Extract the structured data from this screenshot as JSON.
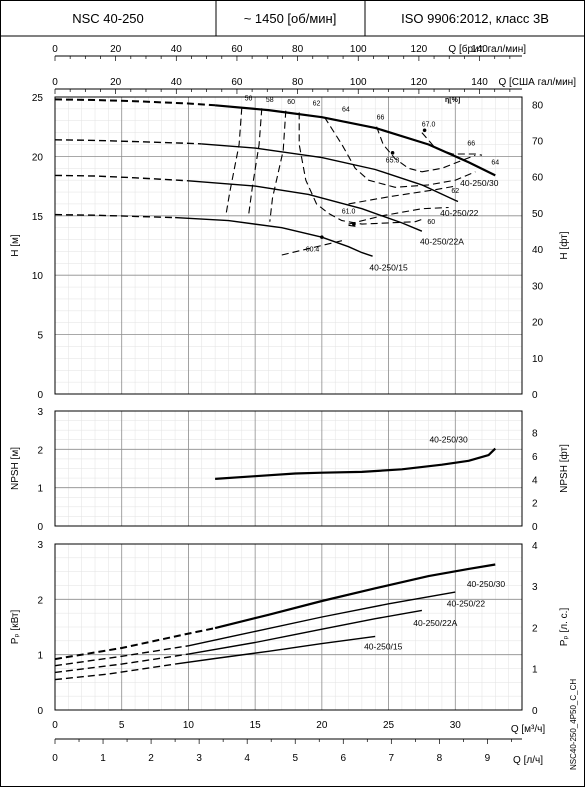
{
  "header": {
    "model": "NSC 40-250",
    "speed": "~ 1450 [об/мин]",
    "standard": "ISO 9906:2012, класс 3B"
  },
  "side_code": "NSC40-250_4P50_C_CH",
  "colors": {
    "curve": "#000000",
    "grid_major": "#8c8c8c",
    "grid_minor": "#e2e2e2"
  },
  "chart_data": [
    {
      "type": "line",
      "name": "head",
      "x_axis": {
        "label": "Q [м³/ч]",
        "range": [
          0,
          35
        ],
        "ticks": [
          "0",
          "5",
          "10",
          "15",
          "20",
          "25",
          "30"
        ]
      },
      "top_axis_1": {
        "label": "Q [брит. гал/мин]",
        "range": [
          0,
          154
        ],
        "ticks": [
          "0",
          "20",
          "40",
          "60",
          "80",
          "100",
          "120",
          "140"
        ]
      },
      "top_axis_2": {
        "label": "Q [США гал/мин]",
        "range": [
          0,
          154
        ],
        "ticks": [
          "0",
          "20",
          "40",
          "60",
          "80",
          "100",
          "120",
          "140"
        ]
      },
      "ylabel": "H [м]",
      "ylim": [
        0,
        25
      ],
      "yticks": [
        "0",
        "5",
        "10",
        "15",
        "20",
        "25"
      ],
      "ylabel2": "H [фт]",
      "ylim2": [
        0,
        82.02
      ],
      "yticks2": [
        "0",
        "10",
        "20",
        "30",
        "40",
        "50",
        "60",
        "70",
        "80"
      ],
      "series": [
        {
          "name": "40-250/30",
          "dashed": [
            [
              0,
              24.8
            ],
            [
              3,
              24.75
            ],
            [
              6,
              24.65
            ],
            [
              10,
              24.45
            ],
            [
              12,
              24.3
            ]
          ],
          "values": [
            [
              12,
              24.3
            ],
            [
              16,
              23.9
            ],
            [
              20,
              23.3
            ],
            [
              24,
              22.4
            ],
            [
              28,
              21
            ],
            [
              31,
              19.5
            ],
            [
              33,
              18.4
            ]
          ]
        },
        {
          "name": "40-250/22",
          "dashed": [
            [
              0,
              21.4
            ],
            [
              3,
              21.35
            ],
            [
              6,
              21.25
            ],
            [
              10,
              21.1
            ],
            [
              11,
              21.05
            ]
          ],
          "values": [
            [
              11,
              21.05
            ],
            [
              15,
              20.7
            ],
            [
              20,
              19.9
            ],
            [
              24,
              18.9
            ],
            [
              27.5,
              17.6
            ],
            [
              30,
              16.3
            ],
            [
              30.2,
              16.2
            ]
          ]
        },
        {
          "name": "40-250/22A",
          "dashed": [
            [
              0,
              18.4
            ],
            [
              3,
              18.35
            ],
            [
              6,
              18.2
            ],
            [
              10,
              17.95
            ]
          ],
          "values": [
            [
              10,
              17.95
            ],
            [
              15,
              17.5
            ],
            [
              19,
              16.8
            ],
            [
              23,
              15.6
            ],
            [
              26,
              14.4
            ],
            [
              27.5,
              13.7
            ]
          ]
        },
        {
          "name": "40-250/15",
          "dashed": [
            [
              0,
              15.1
            ],
            [
              3,
              15.05
            ],
            [
              6,
              14.95
            ],
            [
              9,
              14.85
            ]
          ],
          "values": [
            [
              9,
              14.85
            ],
            [
              13,
              14.6
            ],
            [
              17,
              14
            ],
            [
              20,
              13.2
            ],
            [
              22,
              12.4
            ],
            [
              23,
              11.9
            ],
            [
              23.8,
              11.6
            ]
          ]
        }
      ],
      "efficiency_label": "η[%]",
      "efficiency_curves": [
        {
          "label": "56",
          "points": [
            [
              14,
              24.1
            ],
            [
              13.8,
              21
            ],
            [
              13.1,
              17
            ],
            [
              12.8,
              15
            ]
          ]
        },
        {
          "label": "58",
          "points": [
            [
              15.5,
              24.05
            ],
            [
              15.3,
              21
            ],
            [
              14.8,
              17.5
            ],
            [
              14.5,
              15
            ]
          ]
        },
        {
          "label": "60",
          "points": [
            [
              17.3,
              23.85
            ],
            [
              17.1,
              20.5
            ],
            [
              16.3,
              16.5
            ],
            [
              16.1,
              14.5
            ]
          ]
        },
        {
          "label": "62",
          "points": [
            [
              18.3,
              23.7
            ],
            [
              18.3,
              21
            ],
            [
              18.8,
              18
            ],
            [
              19.6,
              16
            ],
            [
              20.5,
              15.2
            ],
            [
              21.5,
              14.6
            ],
            [
              23,
              14.3
            ],
            [
              25,
              14.4
            ],
            [
              27,
              14.5
            ],
            [
              27.5,
              14.7
            ]
          ]
        },
        {
          "label": "60",
          "points": [
            [
              22,
              14.3
            ],
            [
              24.5,
              15
            ],
            [
              27.5,
              15.6
            ],
            [
              29.5,
              15.7
            ]
          ]
        },
        {
          "label": "61.0",
          "points": [
            [
              22,
              14.2
            ],
            [
              22.6,
              14.1
            ]
          ]
        },
        {
          "label": "62",
          "points": [
            [
              22,
              16
            ],
            [
              25,
              16.6
            ],
            [
              28.5,
              17.2
            ],
            [
              30,
              17.5
            ]
          ]
        },
        {
          "label": "64",
          "points": [
            [
              20.2,
              23.3
            ],
            [
              21.5,
              21
            ],
            [
              22.5,
              19
            ],
            [
              23.5,
              18
            ],
            [
              25.5,
              17.4
            ],
            [
              28,
              17.6
            ],
            [
              30,
              18
            ],
            [
              31.5,
              18.7
            ]
          ]
        },
        {
          "label": "66",
          "points": [
            [
              24.1,
              22.5
            ],
            [
              24.6,
              21
            ],
            [
              25.5,
              19.8
            ],
            [
              26.5,
              19
            ],
            [
              27.5,
              18.7
            ]
          ]
        },
        {
          "label": "66",
          "points": [
            [
              27.5,
              18.7
            ],
            [
              29,
              19
            ],
            [
              31.5,
              20.1
            ]
          ]
        },
        {
          "label": "65.3",
          "points": [
            [
              27.5,
              22
            ],
            [
              28.5,
              20.7
            ],
            [
              29.8,
              20.2
            ],
            [
              31.5,
              20.2
            ],
            [
              32,
              20.1
            ]
          ]
        },
        {
          "label": "67.0",
          "points": [
            [
              28.2,
              22.1
            ],
            [
              28.2,
              22.1
            ]
          ]
        },
        {
          "label": "60.4",
          "points": [
            [
              17,
              11.7
            ],
            [
              21.5,
              12.9
            ]
          ]
        }
      ],
      "marked_points": [
        {
          "label": "67.0",
          "x": 27.7,
          "y": 22.2
        },
        {
          "label": "65.3",
          "x": 25.3,
          "y": 20.3
        },
        {
          "label": "60.4",
          "x": 20,
          "y": 13.2
        },
        {
          "label": "61.0",
          "x": 22.4,
          "y": 14.3
        }
      ]
    },
    {
      "type": "line",
      "name": "npsh",
      "ylabel": "NPSH [м]",
      "ylim": [
        0,
        3
      ],
      "yticks": [
        "0",
        "1",
        "2",
        "3"
      ],
      "ylabel2": "NPSH [фт]",
      "ylim2": [
        0,
        9.84
      ],
      "yticks2": [
        "0",
        "2",
        "4",
        "6",
        "8"
      ],
      "series": [
        {
          "name": "40-250/30",
          "values": [
            [
              12,
              1.23
            ],
            [
              15,
              1.3
            ],
            [
              18,
              1.37
            ],
            [
              20,
              1.39
            ],
            [
              23,
              1.41
            ],
            [
              26,
              1.48
            ],
            [
              29,
              1.6
            ],
            [
              31,
              1.7
            ],
            [
              32.5,
              1.85
            ],
            [
              33,
              2.02
            ]
          ]
        }
      ]
    },
    {
      "type": "line",
      "name": "power",
      "x_axis": {
        "label": "Q [м³/ч]",
        "range": [
          0,
          35
        ],
        "ticks": [
          "0",
          "5",
          "10",
          "15",
          "20",
          "25",
          "30"
        ]
      },
      "x_axis_2": {
        "label": "Q [л/ч]",
        "range": [
          0,
          9.72
        ],
        "ticks": [
          "0",
          "1",
          "2",
          "3",
          "4",
          "5",
          "6",
          "7",
          "8",
          "9"
        ]
      },
      "ylabel": "Pₚ [кВт]",
      "ylim": [
        0,
        3
      ],
      "yticks": [
        "0",
        "1",
        "2",
        "3"
      ],
      "ylabel2": "Pₚ [л. с.]",
      "ylim2": [
        0,
        4.02
      ],
      "yticks2": [
        "0",
        "1",
        "2",
        "3",
        "4"
      ],
      "series": [
        {
          "name": "40-250/30",
          "dashed": [
            [
              0,
              0.92
            ],
            [
              5,
              1.12
            ],
            [
              10,
              1.38
            ],
            [
              12,
              1.48
            ]
          ],
          "values": [
            [
              12,
              1.48
            ],
            [
              16,
              1.72
            ],
            [
              20,
              1.97
            ],
            [
              24,
              2.2
            ],
            [
              28,
              2.42
            ],
            [
              31,
              2.55
            ],
            [
              33,
              2.63
            ]
          ]
        },
        {
          "name": "40-250/22",
          "dashed": [
            [
              0,
              0.8
            ],
            [
              5,
              0.97
            ],
            [
              10,
              1.16
            ]
          ],
          "values": [
            [
              10,
              1.16
            ],
            [
              15,
              1.42
            ],
            [
              20,
              1.68
            ],
            [
              25,
              1.92
            ],
            [
              30,
              2.13
            ]
          ]
        },
        {
          "name": "40-250/22A",
          "dashed": [
            [
              0,
              0.68
            ],
            [
              5,
              0.83
            ],
            [
              10,
              1.01
            ]
          ],
          "values": [
            [
              10,
              1.01
            ],
            [
              15,
              1.22
            ],
            [
              20,
              1.46
            ],
            [
              24,
              1.65
            ],
            [
              27.5,
              1.8
            ]
          ]
        },
        {
          "name": "40-250/15",
          "dashed": [
            [
              0,
              0.55
            ],
            [
              4,
              0.65
            ],
            [
              9,
              0.83
            ]
          ],
          "values": [
            [
              9,
              0.83
            ],
            [
              12,
              0.93
            ],
            [
              16,
              1.06
            ],
            [
              20,
              1.2
            ],
            [
              24,
              1.33
            ]
          ]
        }
      ]
    }
  ],
  "curve_labels": {
    "head": [
      "40-250/30",
      "40-250/22",
      "40-250/22A",
      "40-250/15"
    ],
    "npsh": [
      "40-250/30"
    ],
    "power": [
      "40-250/30",
      "40-250/22",
      "40-250/22A",
      "40-250/15"
    ]
  }
}
